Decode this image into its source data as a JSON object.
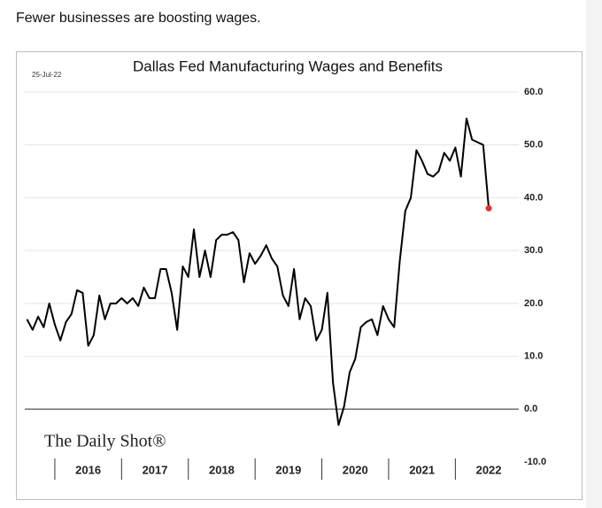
{
  "heading": "Fewer businesses are boosting wages.",
  "chart_data": {
    "type": "line",
    "title": "Dallas Fed Manufacturing Wages and Benefits",
    "date": "25-Jul-22",
    "source": "The Daily Shot®",
    "color": "#000000",
    "last_point_color": "#e0302a",
    "x": [
      2015.583,
      2015.667,
      2015.75,
      2015.833,
      2015.917,
      2016,
      2016.083,
      2016.167,
      2016.25,
      2016.333,
      2016.417,
      2016.5,
      2016.583,
      2016.667,
      2016.75,
      2016.833,
      2016.917,
      2017,
      2017.083,
      2017.167,
      2017.25,
      2017.333,
      2017.417,
      2017.5,
      2017.583,
      2017.667,
      2017.75,
      2017.833,
      2017.917,
      2018,
      2018.083,
      2018.167,
      2018.25,
      2018.333,
      2018.417,
      2018.5,
      2018.583,
      2018.667,
      2018.75,
      2018.833,
      2018.917,
      2019,
      2019.083,
      2019.167,
      2019.25,
      2019.333,
      2019.417,
      2019.5,
      2019.583,
      2019.667,
      2019.75,
      2019.833,
      2019.917,
      2020,
      2020.083,
      2020.167,
      2020.25,
      2020.333,
      2020.417,
      2020.5,
      2020.583,
      2020.667,
      2020.75,
      2020.833,
      2020.917,
      2021,
      2021.083,
      2021.167,
      2021.25,
      2021.333,
      2021.417,
      2021.5,
      2021.583,
      2021.667,
      2021.75,
      2021.833,
      2021.917,
      2022,
      2022.083,
      2022.167,
      2022.25,
      2022.333,
      2022.417,
      2022.5
    ],
    "values": [
      17,
      15,
      17.5,
      15.5,
      20,
      16,
      13,
      16.5,
      18,
      22.5,
      22,
      12,
      14,
      21.5,
      17,
      20,
      20,
      21,
      20,
      21,
      19.5,
      23,
      21,
      21,
      26.5,
      26.5,
      22,
      15,
      27,
      25,
      34,
      25,
      30,
      25,
      32,
      33,
      33,
      33.5,
      32,
      24,
      29.5,
      27.5,
      29,
      31,
      28.5,
      27,
      21.5,
      19.5,
      26.5,
      17,
      21,
      19.5,
      13,
      15,
      22,
      5,
      -3,
      0.5,
      7,
      9.5,
      15.5,
      16.5,
      17,
      14,
      19.5,
      17,
      15.5,
      28,
      37.5,
      40,
      49,
      47,
      44.5,
      44,
      45,
      48.5,
      47,
      49.5,
      44,
      55,
      51,
      50.5,
      50,
      38
    ],
    "xlim": [
      2015.55,
      2022.95
    ],
    "xticks": [
      2016,
      2017,
      2018,
      2019,
      2020,
      2021,
      2022
    ],
    "ylim": [
      -10,
      60
    ],
    "yticks": [
      {
        "value": -10,
        "label": "-10.0"
      },
      {
        "value": 0,
        "label": "0.0"
      },
      {
        "value": 10,
        "label": "10.0"
      },
      {
        "value": 20,
        "label": "20.0"
      },
      {
        "value": 30,
        "label": "30.0"
      },
      {
        "value": 40,
        "label": "40.0"
      },
      {
        "value": 50,
        "label": "50.0"
      },
      {
        "value": 60,
        "label": "60.0"
      }
    ],
    "grid": true
  }
}
